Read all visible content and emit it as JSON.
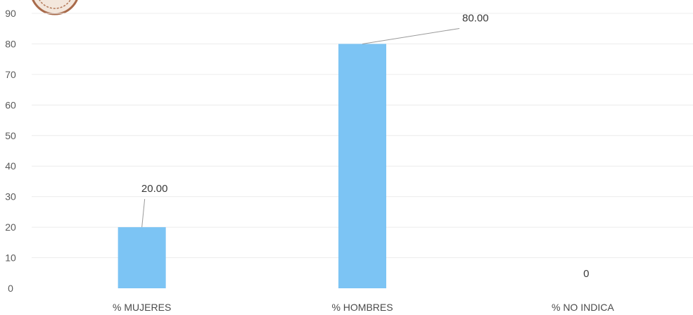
{
  "chart_data": {
    "type": "bar",
    "categories": [
      "% MUJERES",
      "% HOMBRES",
      "% NO INDICA"
    ],
    "values": [
      20,
      80,
      0
    ],
    "data_labels": [
      "20.00",
      "80.00",
      "0"
    ],
    "ylim": [
      0,
      90
    ],
    "yticks": [
      0,
      10,
      20,
      30,
      40,
      50,
      60,
      70,
      80,
      90
    ],
    "grid": true,
    "legend": "none",
    "colors": {
      "bar": "#7cc4f4",
      "grid": "#ececec",
      "leader": "#9a9a9a"
    }
  }
}
